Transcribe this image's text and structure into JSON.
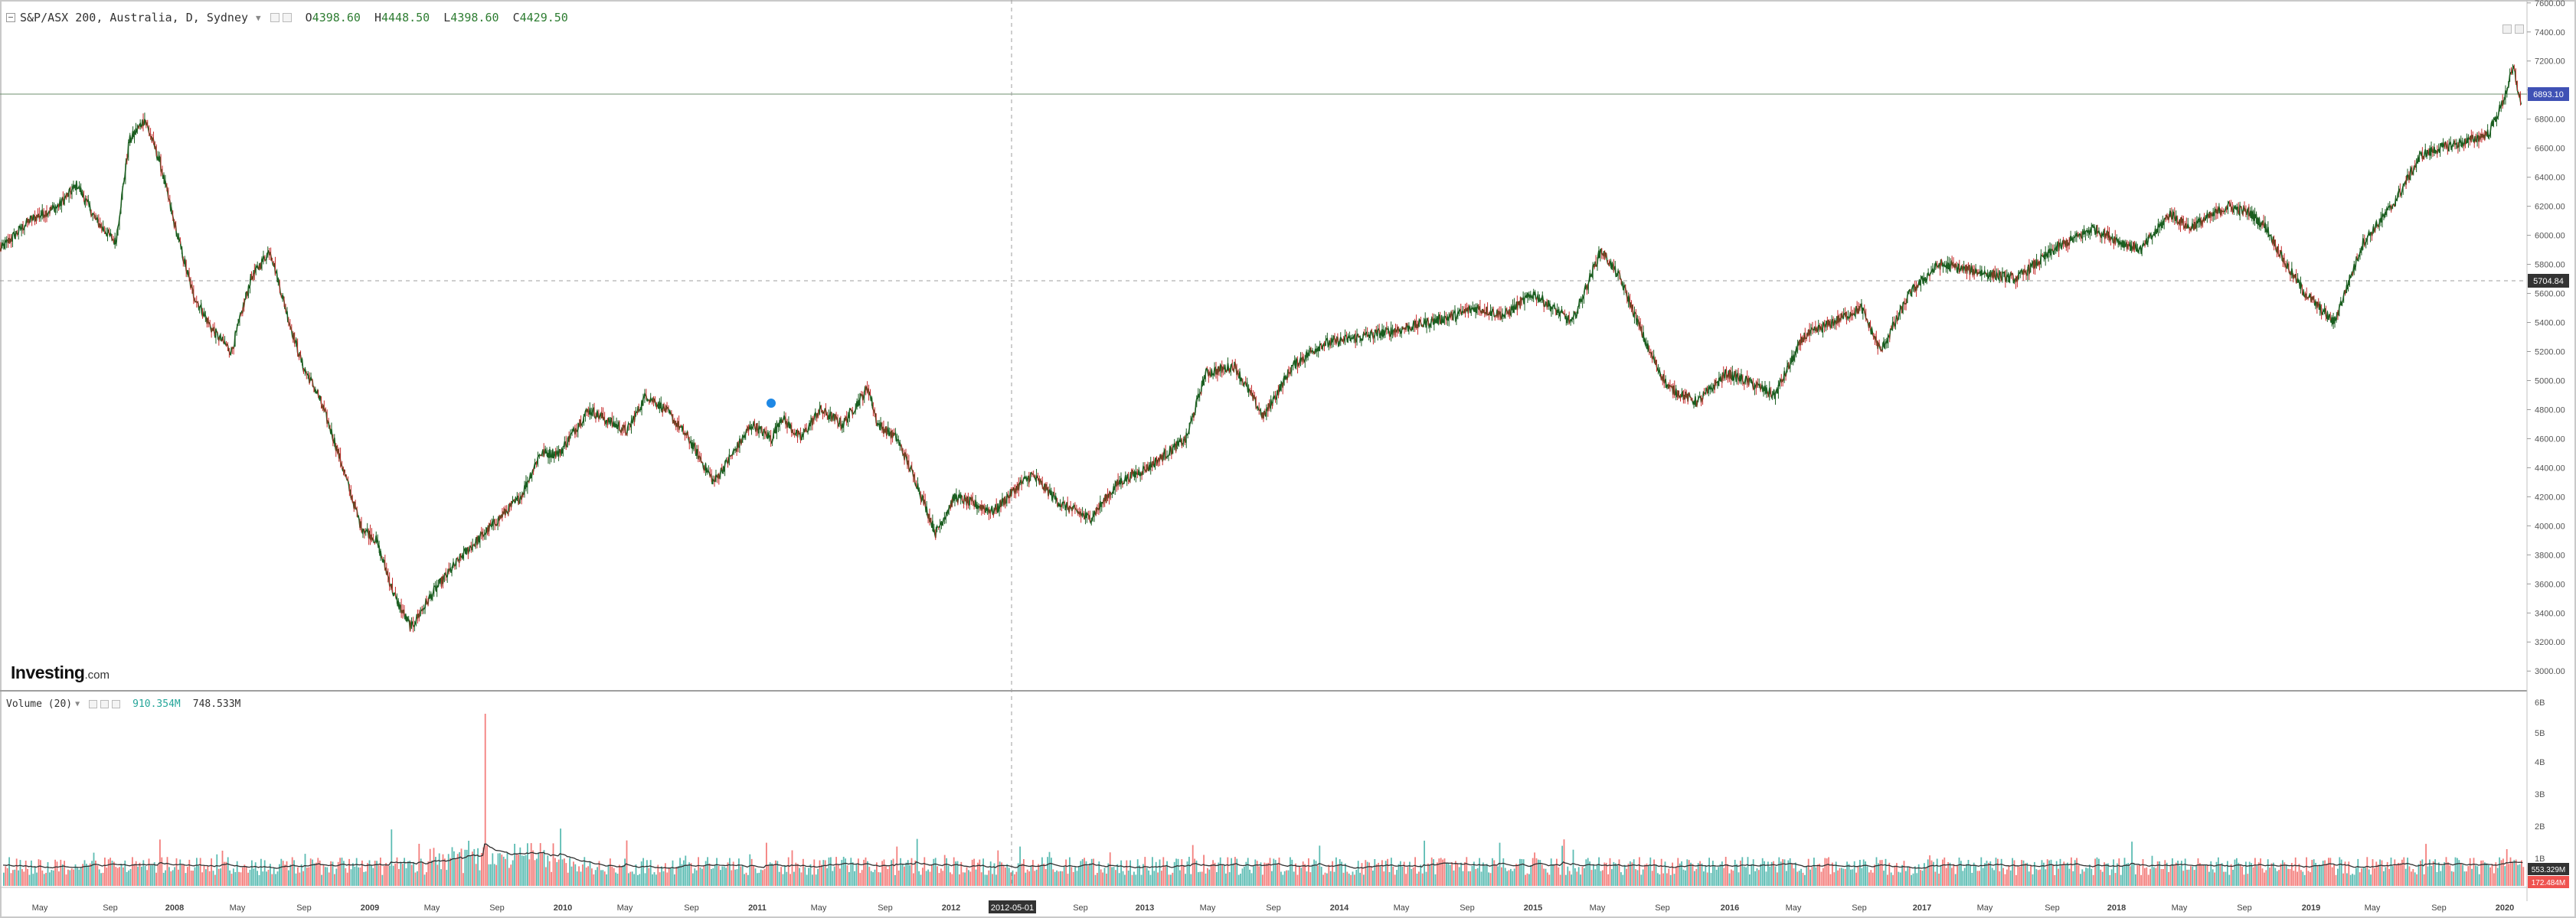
{
  "header": {
    "symbol": "S&P/ASX 200, Australia, D, Sydney",
    "ohlc": {
      "open": "4398.60",
      "high": "4448.50",
      "low": "4398.60",
      "close": "4429.50"
    }
  },
  "volume_legend": {
    "label": "Volume (20)",
    "value1": "910.354M",
    "value2": "748.533M"
  },
  "branding": {
    "logo": "Investing",
    "logo_suffix": ".com"
  },
  "crosshair": {
    "date_label": "2012-05-01",
    "price_label": "5704.84"
  },
  "last_price_label": "6893.10",
  "volume_badges": {
    "primary": "553.329M",
    "secondary": "172.484M"
  },
  "colors": {
    "up": "#26a69a",
    "down": "#ef5350",
    "candle_up": "#1b5e20",
    "candle_down": "#c62828",
    "price_badge": "#3f51b5"
  },
  "chart_data": {
    "type": "line",
    "title": "S&P/ASX 200, Australia, D, Sydney",
    "price_ticks": [
      "7600.00",
      "7400.00",
      "7200.00",
      "7000.00",
      "6800.00",
      "6600.00",
      "6400.00",
      "6200.00",
      "6000.00",
      "5800.00",
      "5600.00",
      "5400.00",
      "5200.00",
      "5000.00",
      "4800.00",
      "4600.00",
      "4400.00",
      "4200.00",
      "4000.00",
      "3800.00",
      "3600.00",
      "3400.00",
      "3200.00",
      "3000.00"
    ],
    "volume_ticks": [
      "6B",
      "5B",
      "4B",
      "3B",
      "2B",
      "1B"
    ],
    "time_ticks": [
      "May",
      "Sep",
      "2008",
      "May",
      "Sep",
      "2009",
      "May",
      "Sep",
      "2010",
      "May",
      "Sep",
      "2011",
      "May",
      "Sep",
      "2012",
      "May",
      "Sep",
      "2013",
      "May",
      "Sep",
      "2014",
      "May",
      "Sep",
      "2015",
      "May",
      "Sep",
      "2016",
      "May",
      "Sep",
      "2017",
      "May",
      "Sep",
      "2018",
      "May",
      "Sep",
      "2019",
      "May",
      "Sep",
      "2020"
    ],
    "ylim": [
      2880,
      7620
    ],
    "x_range": [
      2007.05,
      2020.15
    ],
    "series": [
      {
        "name": "Price",
        "x": [
          2007.05,
          2007.2,
          2007.35,
          2007.45,
          2007.55,
          2007.65,
          2007.72,
          2007.8,
          2007.88,
          2007.95,
          2008.05,
          2008.15,
          2008.25,
          2008.35,
          2008.45,
          2008.55,
          2008.62,
          2008.7,
          2008.78,
          2008.85,
          2008.92,
          2009.0,
          2009.1,
          2009.18,
          2009.3,
          2009.45,
          2009.6,
          2009.75,
          2009.85,
          2009.95,
          2010.1,
          2010.3,
          2010.4,
          2010.5,
          2010.62,
          2010.75,
          2010.85,
          2010.95,
          2011.05,
          2011.1,
          2011.2,
          2011.3,
          2011.42,
          2011.55,
          2011.6,
          2011.7,
          2011.8,
          2011.9,
          2012.0,
          2012.2,
          2012.35,
          2012.4,
          2012.55,
          2012.7,
          2012.85,
          2013.0,
          2013.2,
          2013.3,
          2013.45,
          2013.6,
          2013.75,
          2013.9,
          2014.1,
          2014.3,
          2014.45,
          2014.6,
          2014.7,
          2014.85,
          2015.0,
          2015.1,
          2015.2,
          2015.35,
          2015.45,
          2015.6,
          2015.7,
          2015.85,
          2016.0,
          2016.1,
          2016.25,
          2016.4,
          2016.55,
          2016.7,
          2016.8,
          2016.95,
          2017.1,
          2017.3,
          2017.5,
          2017.7,
          2017.9,
          2018.05,
          2018.15,
          2018.3,
          2018.4,
          2018.6,
          2018.72,
          2018.8,
          2018.9,
          2019.0,
          2019.15,
          2019.3,
          2019.45,
          2019.6,
          2019.7,
          2019.85,
          2019.95,
          2020.02,
          2020.08,
          2020.12
        ],
        "values": [
          5900,
          6100,
          6200,
          6350,
          6100,
          5950,
          6650,
          6800,
          6500,
          6100,
          5600,
          5350,
          5200,
          5700,
          5900,
          5400,
          5100,
          4900,
          4600,
          4300,
          4000,
          3900,
          3500,
          3300,
          3550,
          3800,
          4000,
          4200,
          4500,
          4500,
          4800,
          4650,
          4900,
          4800,
          4600,
          4300,
          4500,
          4700,
          4600,
          4750,
          4600,
          4800,
          4700,
          4950,
          4700,
          4600,
          4300,
          3950,
          4200,
          4100,
          4300,
          4350,
          4150,
          4050,
          4300,
          4400,
          4600,
          5050,
          5100,
          4750,
          5100,
          5250,
          5300,
          5350,
          5400,
          5450,
          5500,
          5450,
          5600,
          5500,
          5400,
          5900,
          5700,
          5200,
          4950,
          4850,
          5050,
          5000,
          4900,
          5300,
          5400,
          5500,
          5200,
          5600,
          5800,
          5750,
          5700,
          5900,
          6050,
          5950,
          5900,
          6150,
          6050,
          6200,
          6150,
          6050,
          5800,
          5600,
          5400,
          5950,
          6200,
          6550,
          6600,
          6650,
          6700,
          6900,
          7150,
          6900
        ]
      },
      {
        "name": "Volume (20)",
        "values": []
      }
    ]
  }
}
